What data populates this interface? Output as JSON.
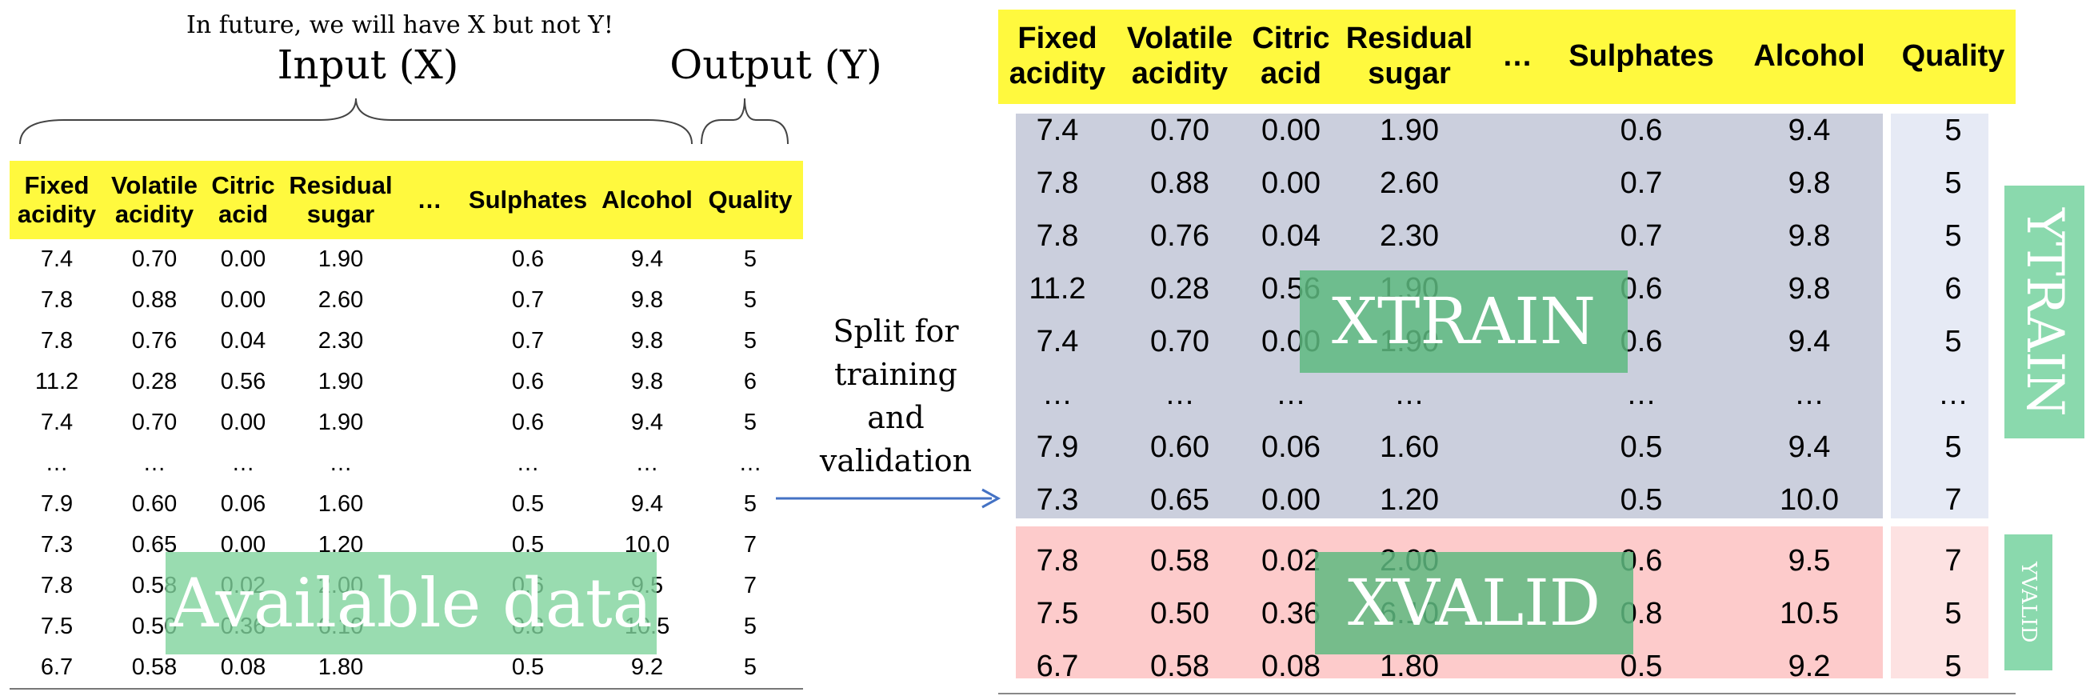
{
  "left": {
    "note": "In future, we will have X but not Y!",
    "input_label": "Input (X)",
    "output_label": "Output (Y)",
    "headers": [
      [
        "Fixed",
        "acidity"
      ],
      [
        "Volatile",
        "acidity"
      ],
      [
        "Citric",
        "acid"
      ],
      [
        "Residual",
        "sugar"
      ],
      [
        "…"
      ],
      [
        "Sulphates"
      ],
      [
        "Alcohol"
      ],
      [
        "Quality"
      ]
    ],
    "rows": [
      [
        "7.4",
        "0.70",
        "0.00",
        "1.90",
        "",
        "0.6",
        "9.4",
        "5"
      ],
      [
        "7.8",
        "0.88",
        "0.00",
        "2.60",
        "",
        "0.7",
        "9.8",
        "5"
      ],
      [
        "7.8",
        "0.76",
        "0.04",
        "2.30",
        "",
        "0.7",
        "9.8",
        "5"
      ],
      [
        "11.2",
        "0.28",
        "0.56",
        "1.90",
        "",
        "0.6",
        "9.8",
        "6"
      ],
      [
        "7.4",
        "0.70",
        "0.00",
        "1.90",
        "",
        "0.6",
        "9.4",
        "5"
      ],
      [
        "…",
        "…",
        "…",
        "…",
        "",
        "…",
        "…",
        "…"
      ],
      [
        "7.9",
        "0.60",
        "0.06",
        "1.60",
        "",
        "0.5",
        "9.4",
        "5"
      ],
      [
        "7.3",
        "0.65",
        "0.00",
        "1.20",
        "",
        "0.5",
        "10.0",
        "7"
      ],
      [
        "7.8",
        "0.58",
        "0.02",
        "2.00",
        "",
        "0.6",
        "9.5",
        "7"
      ],
      [
        "7.5",
        "0.50",
        "0.36",
        "6.10",
        "",
        "0.8",
        "10.5",
        "5"
      ],
      [
        "6.7",
        "0.58",
        "0.08",
        "1.80",
        "",
        "0.5",
        "9.2",
        "5"
      ]
    ],
    "overlay_label": "Available data"
  },
  "arrow": {
    "label": [
      "Split for",
      "training",
      "and",
      "validation"
    ]
  },
  "right": {
    "headers": [
      [
        "Fixed",
        "acidity"
      ],
      [
        "Volatile",
        "acidity"
      ],
      [
        "Citric",
        "acid"
      ],
      [
        "Residual",
        "sugar"
      ],
      [
        "…"
      ],
      [
        "Sulphates"
      ],
      [
        "Alcohol"
      ],
      [
        "Quality"
      ]
    ],
    "train_rows": [
      [
        "7.4",
        "0.70",
        "0.00",
        "1.90",
        "",
        "0.6",
        "9.4",
        "5"
      ],
      [
        "7.8",
        "0.88",
        "0.00",
        "2.60",
        "",
        "0.7",
        "9.8",
        "5"
      ],
      [
        "7.8",
        "0.76",
        "0.04",
        "2.30",
        "",
        "0.7",
        "9.8",
        "5"
      ],
      [
        "11.2",
        "0.28",
        "0.56",
        "1.90",
        "",
        "0.6",
        "9.8",
        "6"
      ],
      [
        "7.4",
        "0.70",
        "0.00",
        "1.90",
        "",
        "0.6",
        "9.4",
        "5"
      ],
      [
        "…",
        "…",
        "…",
        "…",
        "",
        "…",
        "…",
        "…"
      ],
      [
        "7.9",
        "0.60",
        "0.06",
        "1.60",
        "",
        "0.5",
        "9.4",
        "5"
      ],
      [
        "7.3",
        "0.65",
        "0.00",
        "1.20",
        "",
        "0.5",
        "10.0",
        "7"
      ]
    ],
    "valid_rows": [
      [
        "7.8",
        "0.58",
        "0.02",
        "2.00",
        "",
        "0.6",
        "9.5",
        "7"
      ],
      [
        "7.5",
        "0.50",
        "0.36",
        "6.10",
        "",
        "0.8",
        "10.5",
        "5"
      ],
      [
        "6.7",
        "0.58",
        "0.08",
        "1.80",
        "",
        "0.5",
        "9.2",
        "5"
      ]
    ],
    "xtrain_label": "XTRAIN",
    "xvalid_label": "XVALID",
    "ytrain_label": "YTRAIN",
    "yvalid_label": "YVALID"
  },
  "colors": {
    "header_yellow": "#fff93e",
    "overlay_green": "#80d39c",
    "train_panel": "#cbcfdd",
    "valid_panel": "#fdcbcb",
    "arrow_blue": "#4472c4"
  }
}
